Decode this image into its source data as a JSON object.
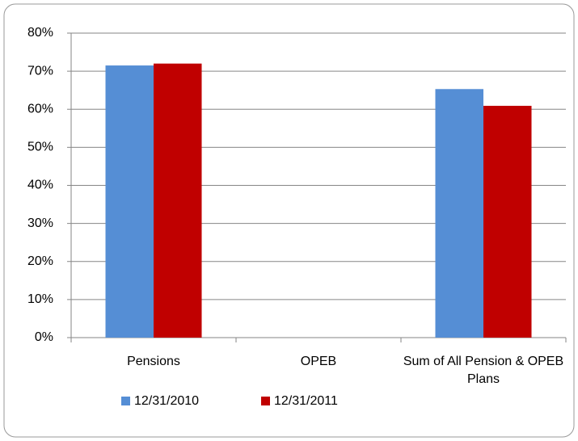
{
  "chart_data": {
    "type": "bar",
    "categories": [
      "Pensions",
      "OPEB",
      "Sum of All Pension & OPEB Plans"
    ],
    "series": [
      {
        "name": "12/31/2010",
        "color": "#558ed5",
        "values": [
          71.5,
          0,
          65.3
        ]
      },
      {
        "name": "12/31/2011",
        "color": "#c00000",
        "values": [
          72,
          0,
          60.9
        ]
      }
    ],
    "ylim": [
      0,
      80
    ],
    "yticks": [
      {
        "value": 0,
        "label": "0%"
      },
      {
        "value": 10,
        "label": "10%"
      },
      {
        "value": 20,
        "label": "20%"
      },
      {
        "value": 30,
        "label": "30%"
      },
      {
        "value": 40,
        "label": "40%"
      },
      {
        "value": 50,
        "label": "50%"
      },
      {
        "value": 60,
        "label": "60%"
      },
      {
        "value": 70,
        "label": "70%"
      },
      {
        "value": 80,
        "label": "80%"
      }
    ],
    "grid": true,
    "legend": "bottom"
  }
}
